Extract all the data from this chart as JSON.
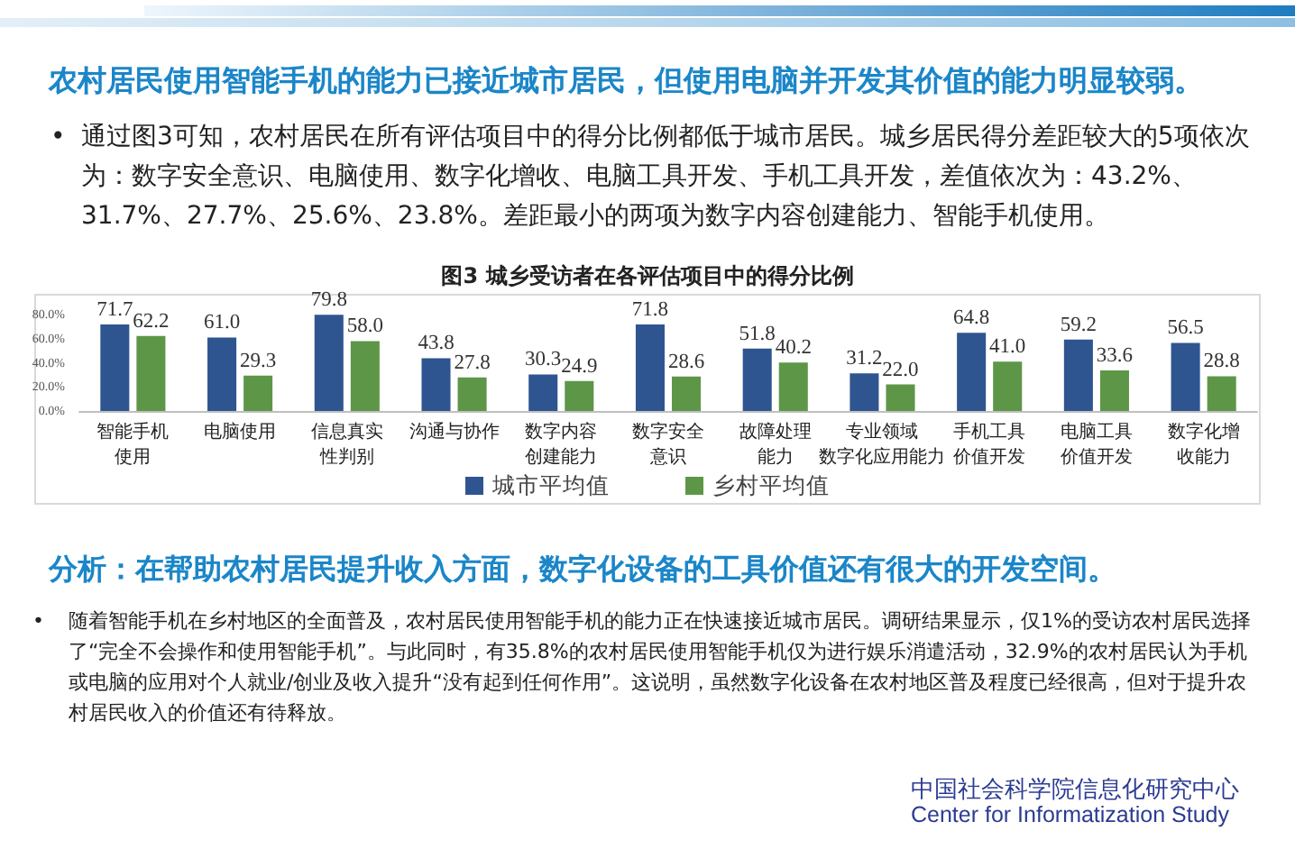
{
  "chart_data": {
    "type": "bar",
    "title": "图3 城乡受访者在各评估项目中的得分比例",
    "categories": [
      "智能手机使用",
      "电脑使用",
      "信息真实性判别",
      "沟通与协作",
      "数字内容创建能力",
      "数字安全意识",
      "故障处理能力",
      "专业领域数字化应用能力",
      "手机工具价值开发",
      "电脑工具价值开发",
      "数字化增收能力"
    ],
    "series": [
      {
        "name": "城市平均值",
        "color": "#2f5591",
        "values": [
          71.7,
          61.0,
          79.8,
          43.8,
          30.3,
          71.8,
          51.8,
          31.2,
          64.8,
          59.2,
          56.5
        ],
        "value_labels": [
          "71.7",
          "61.0",
          "79.8",
          "43.8",
          "30.3",
          "71.8",
          "51.8",
          "31.2",
          "64.8",
          "59.2",
          "56.5"
        ]
      },
      {
        "name": "乡村平均值",
        "color": "#5e9648",
        "values": [
          62.2,
          29.3,
          58.0,
          27.8,
          24.9,
          28.6,
          40.2,
          22.0,
          41.0,
          33.6,
          28.8
        ],
        "value_labels": [
          "62.2",
          "29.3",
          "58.0",
          "27.8",
          "24.9",
          "28.6",
          "40.2",
          "22.0",
          "41.0",
          "33.6",
          "28.8"
        ]
      }
    ],
    "ylim": [
      0,
      80
    ],
    "yticks": [
      {
        "value": 0,
        "label": "0.0%"
      },
      {
        "value": 20,
        "label": "20.0%"
      },
      {
        "value": 40,
        "label": "40.0%"
      },
      {
        "value": 60,
        "label": "60.0%"
      },
      {
        "value": 80,
        "label": "80.0%"
      }
    ],
    "grid": false,
    "legend": "bottom",
    "annotations": [
      "农村居民使用智能手机的能力已接近城市居民，但使用电脑并开发其价值的能力明显较弱。",
      "• 通过图3可知，农村居民在所有评估项目中的得分比例都低于城市居民。城乡居民得分差距较大的5项依次为：数字安全意识、电脑使用、数字化增收、电脑工具开发、手机工具开发，差值依次为：43.2%、31.7%、27.7%、25.6%、23.8%。差距最小的两项为数字内容创建能力、智能手机使用。",
      "分析：在帮助农村居民提升收入方面，数字化设备的工具价值还有很大的开发空间。",
      "• 随着智能手机在乡村地区的全面普及，农村居民使用智能手机的能力正在快速接近城市居民。调研结果显示，仅1%的受访农村居民选择了“完全不会操作和使用智能手机”。与此同时，有35.8%的农村居民使用智能手机仅为进行娱乐消遣活动，32.9%的农村居民认为手机或电脑的应用对个人就业/创业及收入提升“没有起到任何作用”。这说明，虽然数字化设备在农村地区普及程度已经很高，但对于提升农村居民收入的价值还有待释放。",
      "中国社会科学院信息化研究中心",
      "Center for Informatization Study"
    ]
  }
}
